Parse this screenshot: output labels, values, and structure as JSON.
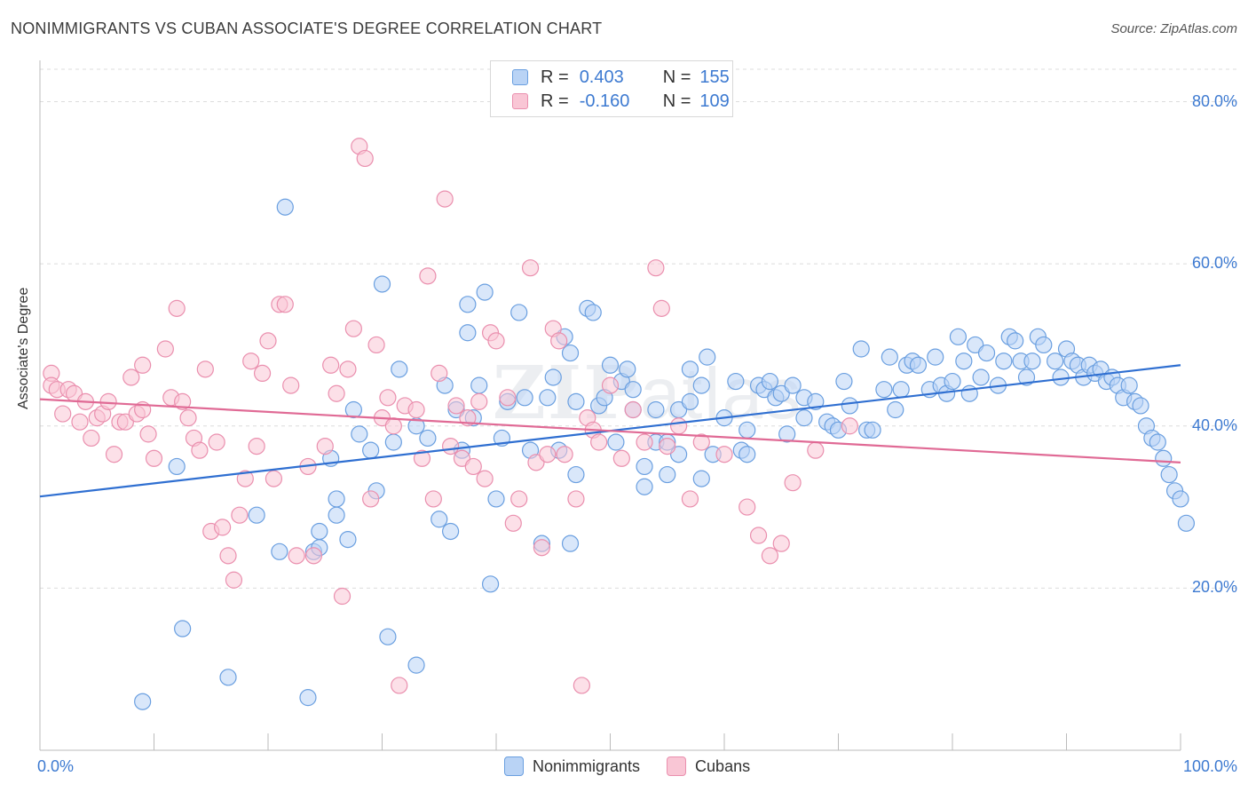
{
  "title": "NONIMMIGRANTS VS CUBAN ASSOCIATE'S DEGREE CORRELATION CHART",
  "source": "Source: ZipAtlas.com",
  "watermark": {
    "zip": "ZIP",
    "atlas": "atlas"
  },
  "legend": {
    "r_label": "R =",
    "n_label": "N =",
    "rows": [
      {
        "r": "0.403",
        "n": "155",
        "fill": "#b9d3f5",
        "stroke": "#6a9fe0"
      },
      {
        "r": "-0.160",
        "n": "109",
        "fill": "#f9c6d5",
        "stroke": "#ea8fae"
      }
    ]
  },
  "bottom_legend": [
    {
      "label": "Nonimmigrants",
      "fill": "#b9d3f5",
      "stroke": "#6a9fe0"
    },
    {
      "label": "Cubans",
      "fill": "#f9c6d5",
      "stroke": "#ea8fae"
    }
  ],
  "chart_data": {
    "type": "scatter",
    "title": "NONIMMIGRANTS VS CUBAN ASSOCIATE'S DEGREE CORRELATION CHART",
    "xlabel": "",
    "ylabel": "Associate's Degree",
    "xlim": [
      0,
      100
    ],
    "ylim": [
      0,
      84
    ],
    "x_ticks": [
      "0.0%",
      "100.0%"
    ],
    "y_ticks": [
      {
        "value": 20,
        "label": "20.0%"
      },
      {
        "value": 40,
        "label": "40.0%"
      },
      {
        "value": 60,
        "label": "60.0%"
      },
      {
        "value": 80,
        "label": "80.0%"
      }
    ],
    "grid": true,
    "legend_position": "top-center",
    "series": [
      {
        "name": "Nonimmigrants",
        "color": "#6a9fe0",
        "fill": "#b9d3f5",
        "line_color": "#2f6fd1",
        "trend": {
          "x": [
            0,
            100
          ],
          "y": [
            31.3,
            47.5
          ]
        },
        "points": [
          [
            9,
            6
          ],
          [
            12,
            35
          ],
          [
            12.5,
            15
          ],
          [
            16.5,
            9
          ],
          [
            19,
            29
          ],
          [
            21,
            24.5
          ],
          [
            21.5,
            67
          ],
          [
            23.5,
            6.5
          ],
          [
            24,
            24.5
          ],
          [
            24.5,
            25
          ],
          [
            24.5,
            27
          ],
          [
            25.5,
            36
          ],
          [
            26,
            29
          ],
          [
            26,
            31
          ],
          [
            27,
            26
          ],
          [
            27.5,
            42
          ],
          [
            28,
            39
          ],
          [
            29,
            37
          ],
          [
            29.5,
            32
          ],
          [
            30,
            57.5
          ],
          [
            30.5,
            14
          ],
          [
            31,
            38
          ],
          [
            31.5,
            47
          ],
          [
            33,
            10.5
          ],
          [
            33,
            40
          ],
          [
            34,
            38.5
          ],
          [
            35,
            28.5
          ],
          [
            35.5,
            45
          ],
          [
            36,
            27
          ],
          [
            36.5,
            42
          ],
          [
            37,
            37
          ],
          [
            37.5,
            55
          ],
          [
            37.5,
            51.5
          ],
          [
            38,
            41
          ],
          [
            38.5,
            45
          ],
          [
            39,
            56.5
          ],
          [
            40,
            31
          ],
          [
            40.5,
            38.5
          ],
          [
            41,
            43
          ],
          [
            42,
            54
          ],
          [
            42.5,
            43.5
          ],
          [
            43,
            37
          ],
          [
            44,
            25.5
          ],
          [
            44.5,
            43.5
          ],
          [
            45,
            46
          ],
          [
            45.5,
            37
          ],
          [
            46,
            51
          ],
          [
            46.5,
            49
          ],
          [
            47,
            34
          ],
          [
            47,
            43
          ],
          [
            48,
            54.5
          ],
          [
            48.5,
            54
          ],
          [
            49,
            42.5
          ],
          [
            49.5,
            43.5
          ],
          [
            50,
            47.5
          ],
          [
            50.5,
            38
          ],
          [
            51,
            45.5
          ],
          [
            51.5,
            47
          ],
          [
            52,
            44.5
          ],
          [
            52,
            42
          ],
          [
            53,
            32.5
          ],
          [
            53,
            35
          ],
          [
            54,
            38
          ],
          [
            54,
            42
          ],
          [
            55,
            34
          ],
          [
            55,
            38
          ],
          [
            56,
            42
          ],
          [
            57,
            47
          ],
          [
            57,
            43
          ],
          [
            58,
            33.5
          ],
          [
            58.5,
            48.5
          ],
          [
            59,
            36.5
          ],
          [
            60,
            41
          ],
          [
            61,
            45.5
          ],
          [
            61.5,
            37
          ],
          [
            62,
            39.5
          ],
          [
            62,
            36.5
          ],
          [
            63,
            45
          ],
          [
            63.5,
            44.5
          ],
          [
            64,
            45.5
          ],
          [
            64.5,
            43.5
          ],
          [
            65,
            44
          ],
          [
            65.5,
            39
          ],
          [
            66,
            45
          ],
          [
            67,
            41
          ],
          [
            67,
            43.5
          ],
          [
            68,
            43
          ],
          [
            69,
            40.5
          ],
          [
            69.5,
            40
          ],
          [
            70,
            39.5
          ],
          [
            70.5,
            45.5
          ],
          [
            71,
            42.5
          ],
          [
            72,
            49.5
          ],
          [
            72.5,
            39.5
          ],
          [
            73,
            39.5
          ],
          [
            74,
            44.5
          ],
          [
            74.5,
            48.5
          ],
          [
            75,
            42
          ],
          [
            75.5,
            44.5
          ],
          [
            76,
            47.5
          ],
          [
            76.5,
            48
          ],
          [
            77,
            47.5
          ],
          [
            78,
            44.5
          ],
          [
            78.5,
            48.5
          ],
          [
            79,
            45
          ],
          [
            79.5,
            44
          ],
          [
            80,
            45.5
          ],
          [
            80.5,
            51
          ],
          [
            81,
            48
          ],
          [
            81.5,
            44
          ],
          [
            82,
            50
          ],
          [
            82.5,
            46
          ],
          [
            83,
            49
          ],
          [
            84,
            45
          ],
          [
            84.5,
            48
          ],
          [
            85,
            51
          ],
          [
            85.5,
            50.5
          ],
          [
            86,
            48
          ],
          [
            86.5,
            46
          ],
          [
            87,
            48
          ],
          [
            87.5,
            51
          ],
          [
            88,
            50
          ],
          [
            89,
            48
          ],
          [
            89.5,
            46
          ],
          [
            90,
            49.5
          ],
          [
            90.5,
            48
          ],
          [
            91,
            47.5
          ],
          [
            91.5,
            46
          ],
          [
            92,
            47.5
          ],
          [
            92.5,
            46.5
          ],
          [
            93,
            47
          ],
          [
            93.5,
            45.5
          ],
          [
            94,
            46
          ],
          [
            94.5,
            45
          ],
          [
            95,
            43.5
          ],
          [
            95.5,
            45
          ],
          [
            96,
            43
          ],
          [
            96.5,
            42.5
          ],
          [
            97,
            40
          ],
          [
            97.5,
            38.5
          ],
          [
            98,
            38
          ],
          [
            98.5,
            36
          ],
          [
            99,
            34
          ],
          [
            99.5,
            32
          ],
          [
            100,
            31
          ],
          [
            100.5,
            28
          ],
          [
            46.5,
            25.5
          ],
          [
            39.5,
            20.5
          ],
          [
            56,
            36.5
          ],
          [
            58,
            45
          ]
        ]
      },
      {
        "name": "Cubans",
        "color": "#ea8fae",
        "fill": "#f9c6d5",
        "line_color": "#e06a95",
        "trend": {
          "x": [
            0,
            100
          ],
          "y": [
            43.3,
            35.5
          ]
        },
        "points": [
          [
            1,
            46.5
          ],
          [
            1,
            45
          ],
          [
            1.5,
            44.5
          ],
          [
            2,
            41.5
          ],
          [
            2.5,
            44.5
          ],
          [
            3,
            44
          ],
          [
            3.5,
            40.5
          ],
          [
            4,
            43
          ],
          [
            4.5,
            38.5
          ],
          [
            5,
            41
          ],
          [
            5.5,
            41.5
          ],
          [
            6,
            43
          ],
          [
            6.5,
            36.5
          ],
          [
            7,
            40.5
          ],
          [
            7.5,
            40.5
          ],
          [
            8,
            46
          ],
          [
            8.5,
            41.5
          ],
          [
            9,
            42
          ],
          [
            9,
            47.5
          ],
          [
            9.5,
            39
          ],
          [
            10,
            36
          ],
          [
            11,
            49.5
          ],
          [
            11.5,
            43.5
          ],
          [
            12,
            54.5
          ],
          [
            12.5,
            43
          ],
          [
            13,
            41
          ],
          [
            13.5,
            38.5
          ],
          [
            14,
            37
          ],
          [
            14.5,
            47
          ],
          [
            15,
            27
          ],
          [
            15.5,
            38
          ],
          [
            16,
            27.5
          ],
          [
            16.5,
            24
          ],
          [
            17,
            21
          ],
          [
            17.5,
            29
          ],
          [
            18,
            33.5
          ],
          [
            18.5,
            48
          ],
          [
            19,
            37.5
          ],
          [
            19.5,
            46.5
          ],
          [
            20,
            50.5
          ],
          [
            20.5,
            33.5
          ],
          [
            21,
            55
          ],
          [
            21.5,
            55
          ],
          [
            22,
            45
          ],
          [
            22.5,
            24
          ],
          [
            23.5,
            35
          ],
          [
            24,
            24
          ],
          [
            25,
            37.5
          ],
          [
            25.5,
            47.5
          ],
          [
            26,
            44
          ],
          [
            26.5,
            19
          ],
          [
            27,
            47
          ],
          [
            27.5,
            52
          ],
          [
            28,
            74.5
          ],
          [
            28.5,
            73
          ],
          [
            29,
            31
          ],
          [
            29.5,
            50
          ],
          [
            30,
            41
          ],
          [
            30.5,
            43.5
          ],
          [
            31,
            40
          ],
          [
            31.5,
            8
          ],
          [
            32,
            42.5
          ],
          [
            33,
            42
          ],
          [
            33.5,
            36
          ],
          [
            34,
            58.5
          ],
          [
            34.5,
            31
          ],
          [
            35,
            46.5
          ],
          [
            35.5,
            68
          ],
          [
            36,
            37.5
          ],
          [
            36.5,
            42.5
          ],
          [
            37,
            36
          ],
          [
            37.5,
            41
          ],
          [
            38,
            35
          ],
          [
            38.5,
            43
          ],
          [
            39,
            33.5
          ],
          [
            39.5,
            51.5
          ],
          [
            40,
            50.5
          ],
          [
            41,
            43.5
          ],
          [
            41.5,
            28
          ],
          [
            42,
            31
          ],
          [
            43,
            59.5
          ],
          [
            43.5,
            35.5
          ],
          [
            44,
            25
          ],
          [
            44.5,
            36.5
          ],
          [
            45,
            52
          ],
          [
            45.5,
            50.5
          ],
          [
            46,
            36.5
          ],
          [
            47,
            31
          ],
          [
            47.5,
            8
          ],
          [
            48,
            41
          ],
          [
            48.5,
            39.5
          ],
          [
            49,
            38
          ],
          [
            50,
            45
          ],
          [
            51,
            36
          ],
          [
            52,
            42
          ],
          [
            53,
            38
          ],
          [
            54,
            59.5
          ],
          [
            54.5,
            54.5
          ],
          [
            55,
            37.5
          ],
          [
            56,
            40
          ],
          [
            57,
            31
          ],
          [
            58,
            38
          ],
          [
            60,
            36.5
          ],
          [
            62,
            30
          ],
          [
            63,
            26.5
          ],
          [
            64,
            24
          ],
          [
            65,
            25.5
          ],
          [
            66,
            33
          ],
          [
            68,
            37
          ],
          [
            71,
            40
          ]
        ]
      }
    ]
  }
}
